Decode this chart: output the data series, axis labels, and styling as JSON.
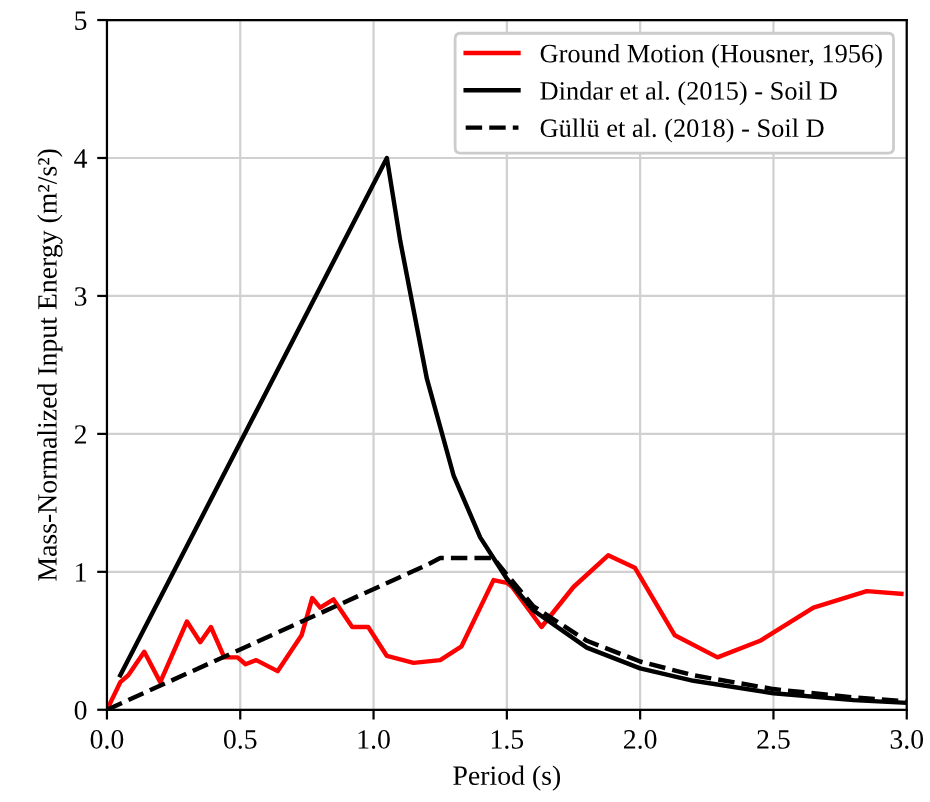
{
  "chart_data": {
    "type": "line",
    "xlabel": "Period (s)",
    "ylabel": "Mass-Normalized Input Energy (m²/s²)",
    "xlim": [
      0,
      3
    ],
    "ylim": [
      0,
      5
    ],
    "xticks": [
      {
        "value": 0,
        "label": "0.0"
      },
      {
        "value": 0.5,
        "label": "0.5"
      },
      {
        "value": 1,
        "label": "1.0"
      },
      {
        "value": 1.5,
        "label": "1.5"
      },
      {
        "value": 2,
        "label": "2.0"
      },
      {
        "value": 2.5,
        "label": "2.5"
      },
      {
        "value": 3,
        "label": "3.0"
      }
    ],
    "yticks": [
      0,
      1,
      2,
      3,
      4,
      5
    ],
    "grid": true,
    "legend": "top right",
    "series": [
      {
        "name": "Ground Motion (Housner, 1956)",
        "color": "#ff0000",
        "line_style": "solid",
        "x": [
          0,
          0.05,
          0.08,
          0.14,
          0.2,
          0.3,
          0.35,
          0.39,
          0.44,
          0.49,
          0.52,
          0.56,
          0.64,
          0.73,
          0.77,
          0.8,
          0.85,
          0.92,
          0.98,
          1.05,
          1.15,
          1.25,
          1.33,
          1.45,
          1.5,
          1.52,
          1.63,
          1.75,
          1.88,
          1.98,
          2.13,
          2.29,
          2.45,
          2.65,
          2.85,
          2.98
        ],
        "values": [
          0,
          0.2,
          0.25,
          0.42,
          0.2,
          0.64,
          0.49,
          0.6,
          0.38,
          0.38,
          0.33,
          0.36,
          0.28,
          0.54,
          0.81,
          0.74,
          0.8,
          0.6,
          0.6,
          0.39,
          0.34,
          0.36,
          0.46,
          0.94,
          0.92,
          0.89,
          0.6,
          0.89,
          1.12,
          1.03,
          0.54,
          0.38,
          0.5,
          0.74,
          0.86,
          0.84
        ]
      },
      {
        "name": "Dindar et al. (2015) - Soil D",
        "color": "#000000",
        "line_style": "solid",
        "x": [
          0.05,
          1.05,
          1.1,
          1.2,
          1.3,
          1.4,
          1.5,
          1.6,
          1.8,
          2.0,
          2.2,
          2.5,
          2.8,
          3.0
        ],
        "values": [
          0.25,
          4.0,
          3.4,
          2.4,
          1.7,
          1.25,
          0.95,
          0.72,
          0.45,
          0.3,
          0.21,
          0.12,
          0.07,
          0.05
        ]
      },
      {
        "name": "Güllü et al. (2018) - Soil D",
        "color": "#000000",
        "line_style": "dashed",
        "x": [
          0,
          1.2,
          1.25,
          1.45,
          1.5,
          1.6,
          1.8,
          2.0,
          2.2,
          2.5,
          2.8,
          3.0
        ],
        "values": [
          0,
          1.05,
          1.1,
          1.1,
          0.98,
          0.75,
          0.5,
          0.35,
          0.25,
          0.15,
          0.09,
          0.06
        ]
      }
    ]
  }
}
